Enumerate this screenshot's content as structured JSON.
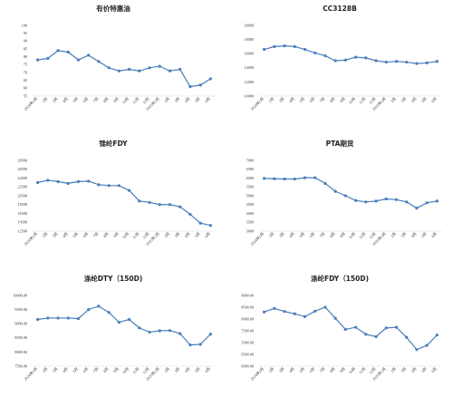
{
  "style": {
    "series_color": "#4a7ebb",
    "grid": false,
    "legend": "none"
  },
  "chart_data": [
    {
      "type": "line",
      "title": "有价特惠油",
      "yticks": [
        "55",
        "60",
        "65",
        "70",
        "75",
        "80",
        "85",
        "90",
        "95",
        "100"
      ],
      "ylim": [
        55,
        100
      ],
      "categories": [
        "2024年1月",
        "2月",
        "3月",
        "4月",
        "5月",
        "6月",
        "7月",
        "8月",
        "9月",
        "10月",
        "11月",
        "12月",
        "2025年1月",
        "2月",
        "3月",
        "4月",
        "5月",
        "6月"
      ],
      "values": [
        78,
        79,
        84,
        83,
        78,
        81,
        77,
        73,
        71,
        72,
        71,
        73,
        74,
        71,
        72,
        61,
        62,
        66
      ]
    },
    {
      "type": "line",
      "title": "CC3128B",
      "yticks": [
        "10000",
        "12000",
        "14000",
        "16000",
        "18000",
        "20000"
      ],
      "ylim": [
        10000,
        20000
      ],
      "categories": [
        "2024年1月",
        "2月",
        "3月",
        "4月",
        "5月",
        "6月",
        "7月",
        "8月",
        "9月",
        "10月",
        "11月",
        "12月",
        "2025年1月",
        "2月",
        "3月",
        "4月",
        "5月",
        "6月"
      ],
      "values": [
        16600,
        17000,
        17100,
        17000,
        16600,
        16100,
        15700,
        15000,
        15100,
        15500,
        15400,
        15000,
        14800,
        14900,
        14800,
        14600,
        14700,
        14900
      ]
    },
    {
      "type": "line",
      "title": "锦纶FDY",
      "yticks": [
        "12500",
        "14500",
        "16500",
        "18500",
        "20500",
        "22500",
        "24500",
        "26500",
        "28500"
      ],
      "ylim": [
        12500,
        28500
      ],
      "categories": [
        "2024年1月",
        "2月",
        "3月",
        "4月",
        "5月",
        "6月",
        "7月",
        "8月",
        "9月",
        "10月",
        "11月",
        "12月",
        "2025年1月",
        "2月",
        "3月",
        "4月",
        "5月",
        "6月"
      ],
      "values": [
        23500,
        24000,
        23700,
        23300,
        23700,
        23800,
        23000,
        22800,
        22800,
        21700,
        19300,
        19000,
        18500,
        18500,
        18000,
        16300,
        14300,
        13800
      ]
    },
    {
      "type": "line",
      "title": "PTA期货",
      "yticks": [
        "3000",
        "3500",
        "4000",
        "4500",
        "5000",
        "5500",
        "6000",
        "6500",
        "7000"
      ],
      "ylim": [
        3000,
        7000
      ],
      "categories": [
        "2024年1月",
        "2月",
        "3月",
        "4月",
        "5月",
        "6月",
        "7月",
        "8月",
        "9月",
        "10月",
        "11月",
        "12月",
        "2025年1月",
        "2月",
        "3月",
        "4月",
        "5月",
        "6月"
      ],
      "values": [
        5980,
        5960,
        5950,
        5950,
        6020,
        6020,
        5700,
        5250,
        5000,
        4730,
        4650,
        4700,
        4820,
        4780,
        4650,
        4300,
        4600,
        4700
      ]
    },
    {
      "type": "line",
      "title": "涤纶DTY（150D)",
      "yticks": [
        "7500.00",
        "8000.00",
        "8500.00",
        "9000.00",
        "9500.00",
        "10000.00"
      ],
      "ylim": [
        7500,
        10000
      ],
      "categories": [
        "2024年1月",
        "2月",
        "3月",
        "4月",
        "5月",
        "6月",
        "7月",
        "8月",
        "9月",
        "10月",
        "11月",
        "12月",
        "2025年1月",
        "2月",
        "3月",
        "4月",
        "5月",
        "6月"
      ],
      "values": [
        9150,
        9200,
        9200,
        9200,
        9180,
        9500,
        9620,
        9400,
        9050,
        9150,
        8850,
        8700,
        8750,
        8760,
        8650,
        8250,
        8270,
        8630
      ]
    },
    {
      "type": "line",
      "title": "涤纶FDY（150D)",
      "yticks": [
        "6000.00",
        "6500.00",
        "7000.00",
        "7500.00",
        "8000.00",
        "8500.00",
        "9000.00"
      ],
      "ylim": [
        6000,
        9000
      ],
      "categories": [
        "2024年1月",
        "2月",
        "3月",
        "4月",
        "5月",
        "6月",
        "7月",
        "8月",
        "9月",
        "10月",
        "11月",
        "12月",
        "2025年1月",
        "2月",
        "3月",
        "4月",
        "5月",
        "6月"
      ],
      "values": [
        8300,
        8450,
        8320,
        8220,
        8100,
        8330,
        8500,
        8030,
        7560,
        7650,
        7350,
        7250,
        7620,
        7650,
        7220,
        6700,
        6880,
        7320
      ]
    }
  ]
}
